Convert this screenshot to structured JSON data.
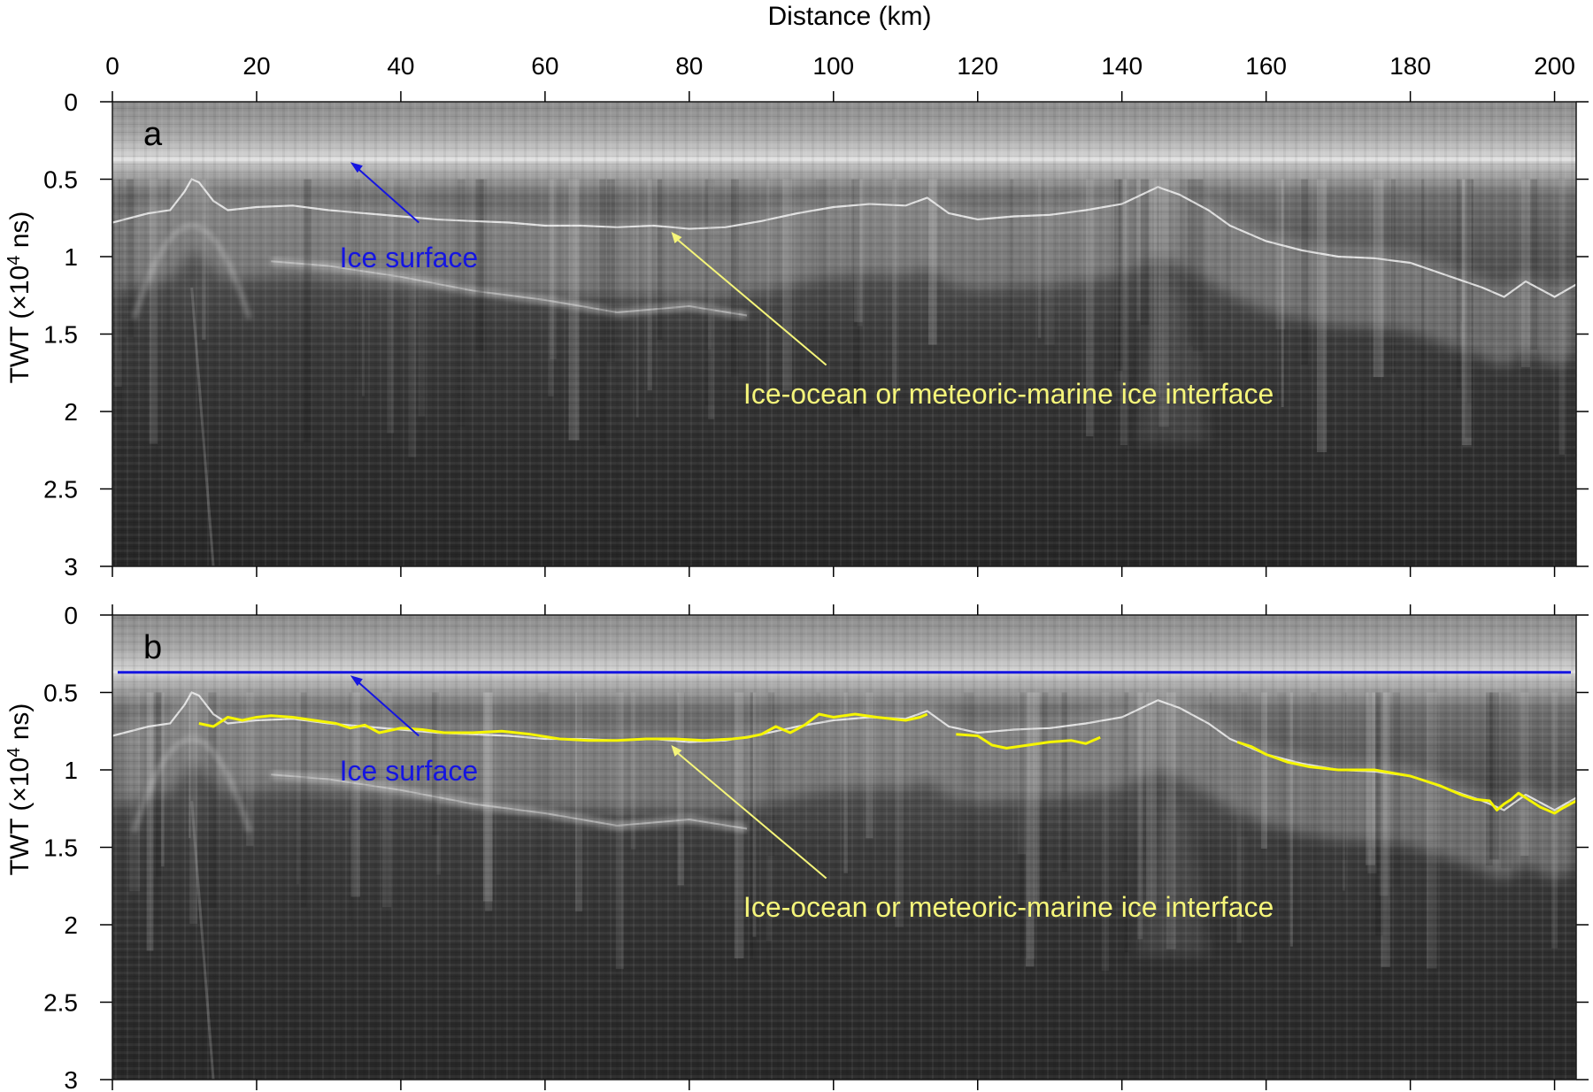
{
  "chart_data": {
    "type": "radargram",
    "x_axis": {
      "label": "Distance (km)",
      "range": [
        0,
        203
      ],
      "ticks": [
        0,
        20,
        40,
        60,
        80,
        100,
        120,
        140,
        160,
        180,
        200
      ],
      "tick_labels": [
        "0",
        "20",
        "40",
        "60",
        "80",
        "100",
        "120",
        "140",
        "160",
        "180",
        "200"
      ],
      "position": "top"
    },
    "y_axis": {
      "label_main": "TWT (×10",
      "label_sup": "4",
      "label_end": " ns)",
      "range": [
        0,
        3
      ],
      "reversed": true,
      "ticks": [
        0,
        0.5,
        1,
        1.5,
        2,
        2.5,
        3
      ],
      "tick_labels": [
        "0",
        "0.5",
        "1",
        "1.5",
        "2",
        "2.5",
        "3"
      ]
    },
    "colors": {
      "ice_surface": "#1515e0",
      "interface": "#f5f500",
      "interface_annotation": "#f5f57a",
      "background_dark": "#262626",
      "surface_band": "#9a9a9a"
    },
    "reflections": {
      "ice_surface_twt": 0.37,
      "interface_pick": [
        [
          12,
          0.7
        ],
        [
          14,
          0.72
        ],
        [
          16,
          0.66
        ],
        [
          18,
          0.68
        ],
        [
          20,
          0.66
        ],
        [
          22,
          0.65
        ],
        [
          25,
          0.66
        ],
        [
          28,
          0.68
        ],
        [
          31,
          0.7
        ],
        [
          33,
          0.73
        ],
        [
          35,
          0.71
        ],
        [
          37,
          0.76
        ],
        [
          40,
          0.73
        ],
        [
          43,
          0.74
        ],
        [
          46,
          0.76
        ],
        [
          50,
          0.76
        ],
        [
          54,
          0.75
        ],
        [
          58,
          0.77
        ],
        [
          62,
          0.8
        ],
        [
          66,
          0.81
        ],
        [
          70,
          0.81
        ],
        [
          74,
          0.8
        ],
        [
          78,
          0.8
        ],
        [
          82,
          0.81
        ],
        [
          86,
          0.8
        ],
        [
          88,
          0.79
        ],
        [
          90,
          0.77
        ],
        [
          92,
          0.72
        ],
        [
          94,
          0.76
        ],
        [
          96,
          0.71
        ],
        [
          98,
          0.64
        ],
        [
          100,
          0.66
        ],
        [
          103,
          0.64
        ],
        [
          106,
          0.66
        ],
        [
          108,
          0.67
        ],
        [
          110,
          0.68
        ],
        [
          112,
          0.66
        ],
        [
          113,
          0.64
        ],
        [
          null,
          null
        ],
        [
          117,
          0.77
        ],
        [
          120,
          0.78
        ],
        [
          122,
          0.84
        ],
        [
          124,
          0.86
        ],
        [
          127,
          0.84
        ],
        [
          130,
          0.82
        ],
        [
          133,
          0.81
        ],
        [
          135,
          0.83
        ],
        [
          137,
          0.79
        ],
        [
          null,
          null
        ],
        [
          156,
          0.82
        ],
        [
          158,
          0.85
        ],
        [
          160,
          0.9
        ],
        [
          163,
          0.95
        ],
        [
          166,
          0.98
        ],
        [
          170,
          1.0
        ],
        [
          175,
          1.0
        ],
        [
          180,
          1.04
        ],
        [
          184,
          1.1
        ],
        [
          187,
          1.16
        ],
        [
          189,
          1.19
        ],
        [
          191,
          1.2
        ],
        [
          192,
          1.26
        ],
        [
          193,
          1.22
        ],
        [
          194,
          1.19
        ],
        [
          195,
          1.15
        ],
        [
          196,
          1.18
        ],
        [
          198,
          1.24
        ],
        [
          200,
          1.28
        ],
        [
          201,
          1.25
        ],
        [
          203,
          1.2
        ]
      ],
      "basal_echo": [
        [
          22,
          1.03
        ],
        [
          30,
          1.06
        ],
        [
          40,
          1.13
        ],
        [
          50,
          1.22
        ],
        [
          60,
          1.28
        ],
        [
          70,
          1.36
        ],
        [
          80,
          1.32
        ],
        [
          88,
          1.38
        ]
      ],
      "surface_trace_a": [
        [
          0,
          0.78
        ],
        [
          5,
          0.72
        ],
        [
          8,
          0.7
        ],
        [
          10,
          0.58
        ],
        [
          11,
          0.5
        ],
        [
          12,
          0.52
        ],
        [
          14,
          0.64
        ],
        [
          16,
          0.7
        ],
        [
          20,
          0.68
        ],
        [
          25,
          0.67
        ],
        [
          30,
          0.7
        ],
        [
          35,
          0.72
        ],
        [
          40,
          0.74
        ],
        [
          45,
          0.76
        ],
        [
          50,
          0.77
        ],
        [
          55,
          0.78
        ],
        [
          60,
          0.8
        ],
        [
          65,
          0.8
        ],
        [
          70,
          0.81
        ],
        [
          75,
          0.8
        ],
        [
          80,
          0.82
        ],
        [
          85,
          0.81
        ],
        [
          90,
          0.77
        ],
        [
          95,
          0.72
        ],
        [
          100,
          0.68
        ],
        [
          105,
          0.66
        ],
        [
          110,
          0.67
        ],
        [
          113,
          0.62
        ],
        [
          116,
          0.72
        ],
        [
          120,
          0.76
        ],
        [
          125,
          0.74
        ],
        [
          130,
          0.73
        ],
        [
          135,
          0.7
        ],
        [
          140,
          0.66
        ],
        [
          145,
          0.55
        ],
        [
          148,
          0.6
        ],
        [
          152,
          0.7
        ],
        [
          155,
          0.8
        ],
        [
          160,
          0.9
        ],
        [
          165,
          0.96
        ],
        [
          170,
          1.0
        ],
        [
          175,
          1.01
        ],
        [
          180,
          1.04
        ],
        [
          185,
          1.12
        ],
        [
          190,
          1.2
        ],
        [
          193,
          1.26
        ],
        [
          196,
          1.16
        ],
        [
          200,
          1.26
        ],
        [
          203,
          1.18
        ]
      ]
    },
    "panels": [
      {
        "label": "a",
        "annotations": {
          "ice_surface_text": "Ice surface",
          "interface_text": "Ice-ocean or meteoric-marine ice interface"
        }
      },
      {
        "label": "b",
        "annotations": {
          "ice_surface_text": "Ice surface",
          "interface_text": "Ice-ocean or meteoric-marine ice interface"
        }
      }
    ]
  }
}
